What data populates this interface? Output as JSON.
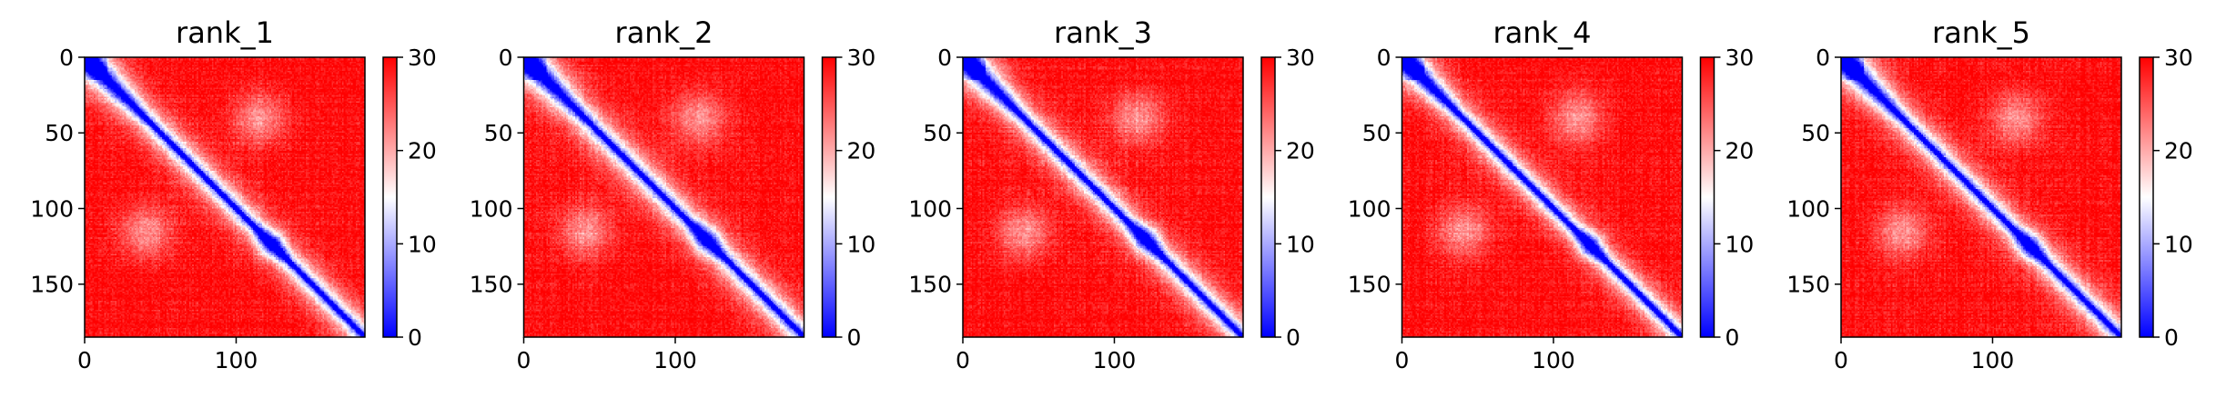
{
  "chart_data": [
    {
      "type": "heatmap",
      "title": "rank_1",
      "xticks": [
        "0",
        "100"
      ],
      "yticks": [
        "0",
        "50",
        "100",
        "150"
      ],
      "colorbar": {
        "ticks": [
          "0",
          "10",
          "20",
          "30"
        ],
        "range": [
          0,
          30
        ],
        "colors": [
          "#0000ff",
          "#ffffff",
          "#ff0000"
        ]
      },
      "n_residues": 185,
      "features": {
        "block_n_end": 45,
        "block_c_center": 123,
        "block_c_halfwidth": 10,
        "diag_halfwidth": 2.8
      }
    },
    {
      "type": "heatmap",
      "title": "rank_2",
      "xticks": [
        "0",
        "100"
      ],
      "yticks": [
        "0",
        "50",
        "100",
        "150"
      ],
      "colorbar": {
        "ticks": [
          "0",
          "10",
          "20",
          "30"
        ],
        "range": [
          0,
          30
        ],
        "colors": [
          "#0000ff",
          "#ffffff",
          "#ff0000"
        ]
      },
      "n_residues": 185,
      "features": {
        "block_n_end": 44,
        "block_c_center": 120,
        "block_c_halfwidth": 11,
        "diag_halfwidth": 3.0
      }
    },
    {
      "type": "heatmap",
      "title": "rank_3",
      "xticks": [
        "0",
        "100"
      ],
      "yticks": [
        "0",
        "50",
        "100",
        "150"
      ],
      "colorbar": {
        "ticks": [
          "0",
          "10",
          "20",
          "30"
        ],
        "range": [
          0,
          30
        ],
        "colors": [
          "#0000ff",
          "#ffffff",
          "#ff0000"
        ]
      },
      "n_residues": 185,
      "features": {
        "block_n_end": 42,
        "block_c_center": 120,
        "block_c_halfwidth": 11,
        "diag_halfwidth": 2.8
      }
    },
    {
      "type": "heatmap",
      "title": "rank_4",
      "xticks": [
        "0",
        "100"
      ],
      "yticks": [
        "0",
        "50",
        "100",
        "150"
      ],
      "colorbar": {
        "ticks": [
          "0",
          "10",
          "20",
          "30"
        ],
        "range": [
          0,
          30
        ],
        "colors": [
          "#0000ff",
          "#ffffff",
          "#ff0000"
        ]
      },
      "n_residues": 185,
      "features": {
        "block_n_end": 40,
        "block_c_center": 124,
        "block_c_halfwidth": 9,
        "diag_halfwidth": 2.6
      }
    },
    {
      "type": "heatmap",
      "title": "rank_5",
      "xticks": [
        "0",
        "100"
      ],
      "yticks": [
        "0",
        "50",
        "100",
        "150"
      ],
      "colorbar": {
        "ticks": [
          "0",
          "10",
          "20",
          "30"
        ],
        "range": [
          0,
          30
        ],
        "colors": [
          "#0000ff",
          "#ffffff",
          "#ff0000"
        ]
      },
      "n_residues": 185,
      "features": {
        "block_n_end": 44,
        "block_c_center": 124,
        "block_c_halfwidth": 10,
        "diag_halfwidth": 2.8
      }
    }
  ]
}
